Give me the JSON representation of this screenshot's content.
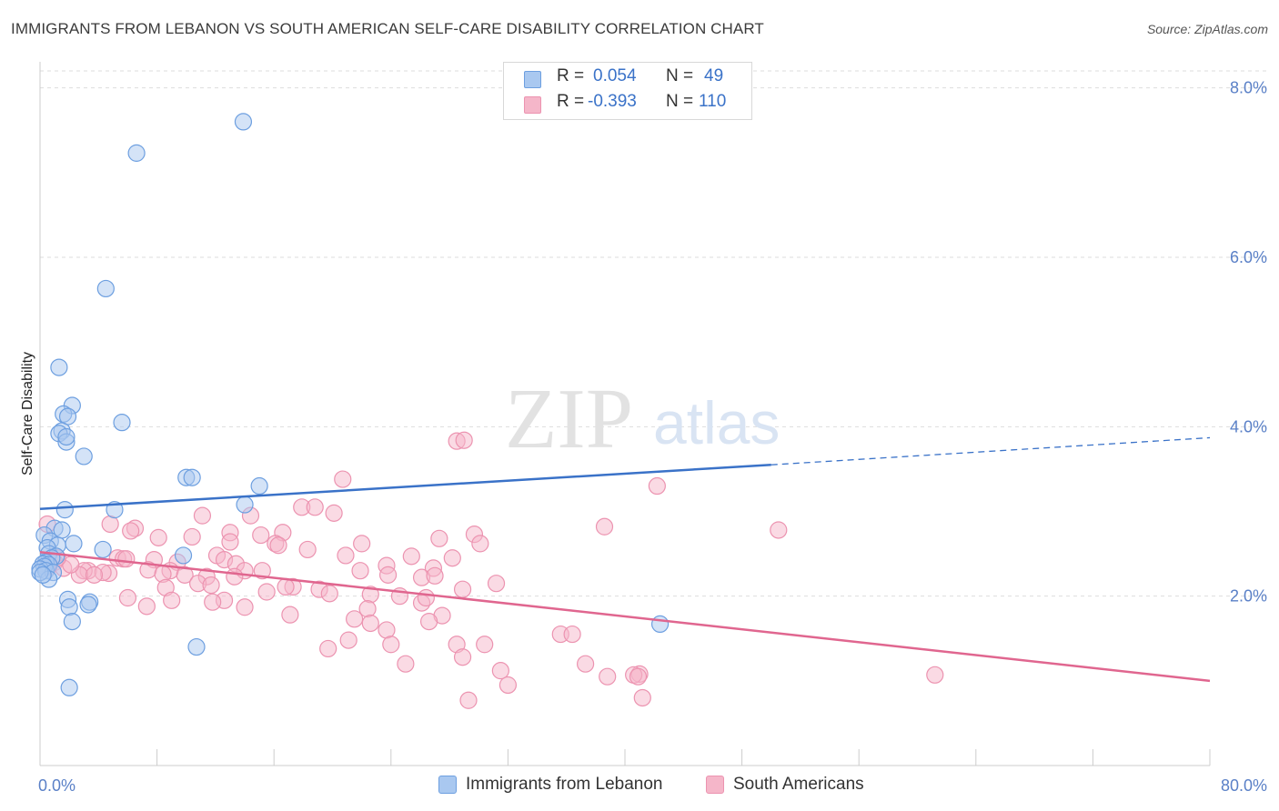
{
  "header": {
    "title": "IMMIGRANTS FROM LEBANON VS SOUTH AMERICAN SELF-CARE DISABILITY CORRELATION CHART",
    "source": "Source: ZipAtlas.com"
  },
  "watermark": {
    "zip": "ZIP",
    "atlas": "atlas"
  },
  "stats": {
    "r_label": "R =",
    "n_label": "N =",
    "rows": [
      {
        "r": "0.054",
        "n": "49",
        "color": "#a9c8f0"
      },
      {
        "r": "-0.393",
        "n": "110",
        "color": "#f5b6c9"
      }
    ]
  },
  "legend": {
    "items": [
      {
        "label": "Immigrants from Lebanon",
        "color": "#a9c8f0"
      },
      {
        "label": "South Americans",
        "color": "#f5b6c9"
      }
    ]
  },
  "colors": {
    "blue_fill": "#a9c8f0",
    "blue_stroke": "#6d9fe0",
    "blue_line": "#3a72c8",
    "pink_fill": "#f5b6c9",
    "pink_stroke": "#ec93b0",
    "pink_line": "#e0668f",
    "grid": "#dddddd",
    "tick_label": "#5a80c7"
  },
  "chart_data": {
    "type": "scatter",
    "ylabel": "Self-Care Disability",
    "xlim": [
      0,
      80
    ],
    "ylim": [
      0,
      8.2
    ],
    "x_tick_labels": [
      {
        "value": 0,
        "label": "0.0%"
      },
      {
        "value": 80,
        "label": "80.0%"
      }
    ],
    "y_ticks": [
      {
        "value": 2,
        "label": "2.0%"
      },
      {
        "value": 4,
        "label": "4.0%"
      },
      {
        "value": 6,
        "label": "6.0%"
      },
      {
        "value": 8,
        "label": "8.0%"
      }
    ],
    "grid": "horizontal dashed",
    "series": [
      {
        "name": "Immigrants from Lebanon",
        "color": "#a9c8f0",
        "trend": {
          "x0": 0,
          "y0": 3.03,
          "x1": 50,
          "y1": 3.55,
          "dashed_to_x": 80,
          "dashed_to_y": 3.87
        },
        "points": [
          [
            13.9,
            7.6
          ],
          [
            6.6,
            7.23
          ],
          [
            4.5,
            5.63
          ],
          [
            1.3,
            4.7
          ],
          [
            2.2,
            4.25
          ],
          [
            1.6,
            4.15
          ],
          [
            1.9,
            4.12
          ],
          [
            5.6,
            4.05
          ],
          [
            1.5,
            3.95
          ],
          [
            1.3,
            3.92
          ],
          [
            1.8,
            3.82
          ],
          [
            1.8,
            3.88
          ],
          [
            3.0,
            3.65
          ],
          [
            10.0,
            3.4
          ],
          [
            10.4,
            3.4
          ],
          [
            15.0,
            3.3
          ],
          [
            14.0,
            3.08
          ],
          [
            1.7,
            3.02
          ],
          [
            5.1,
            3.02
          ],
          [
            1.0,
            2.8
          ],
          [
            1.5,
            2.78
          ],
          [
            0.3,
            2.72
          ],
          [
            0.7,
            2.65
          ],
          [
            1.2,
            2.6
          ],
          [
            2.3,
            2.62
          ],
          [
            0.5,
            2.57
          ],
          [
            4.3,
            2.55
          ],
          [
            0.6,
            2.5
          ],
          [
            1.1,
            2.47
          ],
          [
            9.8,
            2.48
          ],
          [
            0.8,
            2.45
          ],
          [
            0.4,
            2.4
          ],
          [
            0.2,
            2.38
          ],
          [
            0.6,
            2.37
          ],
          [
            0.3,
            2.35
          ],
          [
            0.0,
            2.32
          ],
          [
            0.4,
            2.3
          ],
          [
            0.9,
            2.28
          ],
          [
            0.6,
            2.2
          ],
          [
            1.9,
            1.96
          ],
          [
            3.4,
            1.93
          ],
          [
            3.3,
            1.9
          ],
          [
            2.0,
            1.87
          ],
          [
            2.2,
            1.7
          ],
          [
            42.4,
            1.67
          ],
          [
            10.7,
            1.4
          ],
          [
            2.0,
            0.92
          ],
          [
            0.0,
            2.28
          ],
          [
            0.2,
            2.25
          ]
        ]
      },
      {
        "name": "South Americans",
        "color": "#f5b6c9",
        "trend": {
          "x0": 0,
          "y0": 2.52,
          "x1": 80,
          "y1": 1.0
        },
        "points": [
          [
            28.5,
            3.83
          ],
          [
            29.0,
            3.84
          ],
          [
            42.2,
            3.3
          ],
          [
            20.7,
            3.38
          ],
          [
            17.9,
            3.05
          ],
          [
            18.8,
            3.05
          ],
          [
            20.1,
            2.98
          ],
          [
            11.1,
            2.95
          ],
          [
            14.4,
            2.95
          ],
          [
            4.8,
            2.85
          ],
          [
            6.5,
            2.8
          ],
          [
            38.6,
            2.82
          ],
          [
            50.5,
            2.78
          ],
          [
            6.2,
            2.77
          ],
          [
            16.6,
            2.75
          ],
          [
            13.0,
            2.75
          ],
          [
            15.1,
            2.72
          ],
          [
            29.7,
            2.73
          ],
          [
            10.4,
            2.7
          ],
          [
            8.1,
            2.69
          ],
          [
            27.3,
            2.68
          ],
          [
            13.0,
            2.64
          ],
          [
            16.1,
            2.62
          ],
          [
            16.3,
            2.6
          ],
          [
            22.0,
            2.62
          ],
          [
            30.1,
            2.62
          ],
          [
            18.3,
            2.55
          ],
          [
            20.9,
            2.48
          ],
          [
            25.4,
            2.47
          ],
          [
            28.2,
            2.45
          ],
          [
            12.1,
            2.48
          ],
          [
            5.3,
            2.45
          ],
          [
            5.7,
            2.44
          ],
          [
            5.9,
            2.44
          ],
          [
            12.6,
            2.43
          ],
          [
            7.8,
            2.43
          ],
          [
            9.4,
            2.4
          ],
          [
            13.4,
            2.38
          ],
          [
            23.7,
            2.36
          ],
          [
            21.9,
            2.3
          ],
          [
            26.9,
            2.33
          ],
          [
            15.2,
            2.3
          ],
          [
            7.4,
            2.31
          ],
          [
            14.0,
            2.3
          ],
          [
            8.9,
            2.3
          ],
          [
            8.4,
            2.26
          ],
          [
            3.3,
            2.3
          ],
          [
            4.7,
            2.27
          ],
          [
            4.3,
            2.28
          ],
          [
            3.0,
            2.3
          ],
          [
            2.7,
            2.25
          ],
          [
            3.7,
            2.25
          ],
          [
            9.9,
            2.25
          ],
          [
            13.3,
            2.23
          ],
          [
            11.4,
            2.23
          ],
          [
            26.1,
            2.22
          ],
          [
            23.8,
            2.25
          ],
          [
            27.0,
            2.24
          ],
          [
            31.2,
            2.15
          ],
          [
            10.8,
            2.15
          ],
          [
            11.7,
            2.13
          ],
          [
            17.3,
            2.11
          ],
          [
            16.8,
            2.11
          ],
          [
            28.9,
            2.08
          ],
          [
            8.6,
            2.1
          ],
          [
            19.1,
            2.08
          ],
          [
            15.5,
            2.05
          ],
          [
            22.6,
            2.02
          ],
          [
            19.8,
            2.03
          ],
          [
            24.6,
            2.0
          ],
          [
            6.0,
            1.98
          ],
          [
            12.6,
            1.95
          ],
          [
            9.0,
            1.95
          ],
          [
            11.8,
            1.93
          ],
          [
            26.1,
            1.92
          ],
          [
            26.4,
            1.98
          ],
          [
            14.0,
            1.87
          ],
          [
            7.3,
            1.88
          ],
          [
            22.4,
            1.85
          ],
          [
            17.1,
            1.78
          ],
          [
            27.5,
            1.77
          ],
          [
            21.5,
            1.73
          ],
          [
            26.6,
            1.7
          ],
          [
            22.6,
            1.68
          ],
          [
            23.7,
            1.6
          ],
          [
            35.6,
            1.55
          ],
          [
            36.4,
            1.55
          ],
          [
            21.1,
            1.48
          ],
          [
            24.0,
            1.43
          ],
          [
            28.5,
            1.43
          ],
          [
            30.4,
            1.43
          ],
          [
            19.7,
            1.38
          ],
          [
            28.9,
            1.28
          ],
          [
            37.3,
            1.2
          ],
          [
            25.0,
            1.2
          ],
          [
            31.5,
            1.12
          ],
          [
            41.0,
            1.08
          ],
          [
            40.6,
            1.07
          ],
          [
            40.9,
            1.05
          ],
          [
            38.8,
            1.05
          ],
          [
            61.2,
            1.07
          ],
          [
            32.0,
            0.95
          ],
          [
            41.2,
            0.8
          ],
          [
            29.3,
            0.77
          ],
          [
            0.5,
            2.85
          ],
          [
            1.0,
            2.4
          ],
          [
            0.6,
            2.35
          ],
          [
            1.6,
            2.33
          ],
          [
            2.1,
            2.37
          ],
          [
            1.2,
            2.45
          ]
        ]
      }
    ]
  }
}
